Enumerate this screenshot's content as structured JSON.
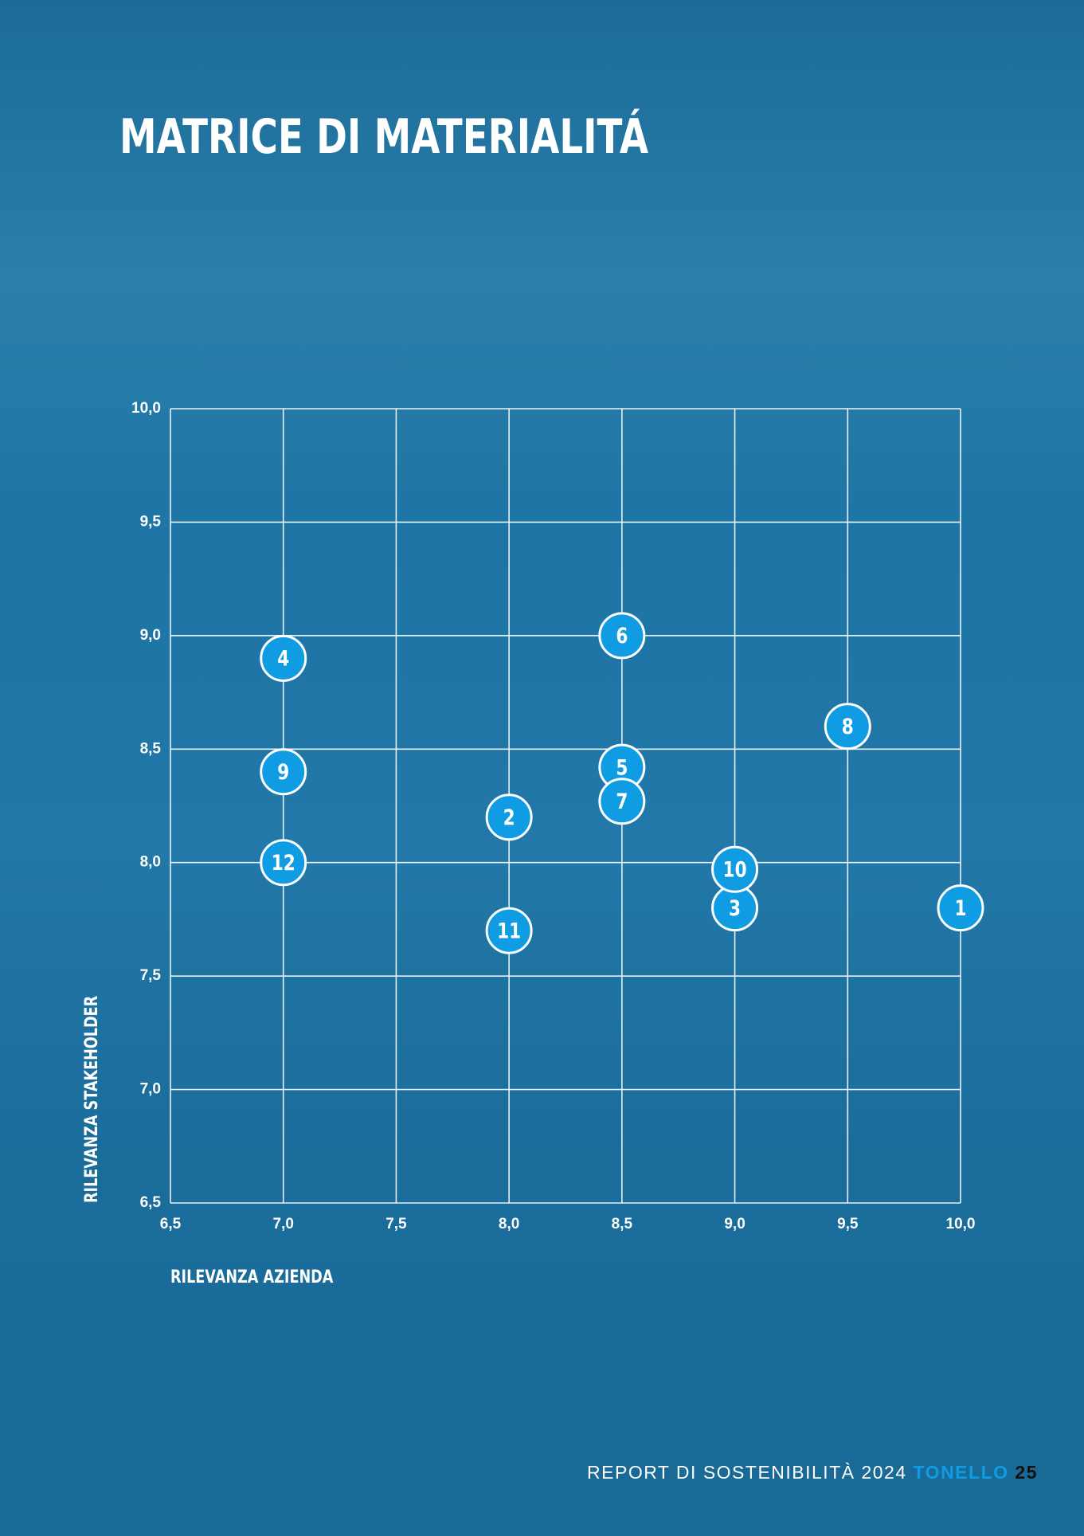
{
  "chart_data": {
    "type": "scatter",
    "title": "MATRICE DI MATERIALITÁ",
    "x_label": "RILEVANZA AZIENDA",
    "y_label": "RILEVANZA STAKEHOLDER",
    "x": [
      10.0,
      8.0,
      9.0,
      7.0,
      8.5,
      8.5,
      8.5,
      9.5,
      7.0,
      9.0,
      8.0,
      7.0
    ],
    "values": [
      7.8,
      8.2,
      7.8,
      8.9,
      8.42,
      9.0,
      8.27,
      8.6,
      8.4,
      7.97,
      7.7,
      8.0
    ],
    "point_labels": [
      "1",
      "2",
      "3",
      "4",
      "5",
      "6",
      "7",
      "8",
      "9",
      "10",
      "11",
      "12"
    ],
    "color": "#0f9ce3",
    "grid": true,
    "xlim": [
      6.5,
      10.0
    ],
    "ylim": [
      6.5,
      10.0
    ],
    "xticks": [
      {
        "value": 6.5,
        "label": "6,5"
      },
      {
        "value": 7.0,
        "label": "7,0"
      },
      {
        "value": 7.5,
        "label": "7,5"
      },
      {
        "value": 8.0,
        "label": "8,0"
      },
      {
        "value": 8.5,
        "label": "8,5"
      },
      {
        "value": 9.0,
        "label": "9,0"
      },
      {
        "value": 9.5,
        "label": "9,5"
      },
      {
        "value": 10.0,
        "label": "10,0"
      }
    ],
    "yticks": [
      {
        "value": 6.5,
        "label": "6,5"
      },
      {
        "value": 7.0,
        "label": "7,0"
      },
      {
        "value": 7.5,
        "label": "7,5"
      },
      {
        "value": 8.0,
        "label": "8,0"
      },
      {
        "value": 8.5,
        "label": "8,5"
      },
      {
        "value": 9.0,
        "label": "9,0"
      },
      {
        "value": 9.5,
        "label": "9,5"
      },
      {
        "value": 10.0,
        "label": "10,0"
      }
    ]
  },
  "footer": {
    "report": "REPORT DI SOSTENIBILITÀ 2024",
    "brand": "TONELLO",
    "page": "25"
  }
}
